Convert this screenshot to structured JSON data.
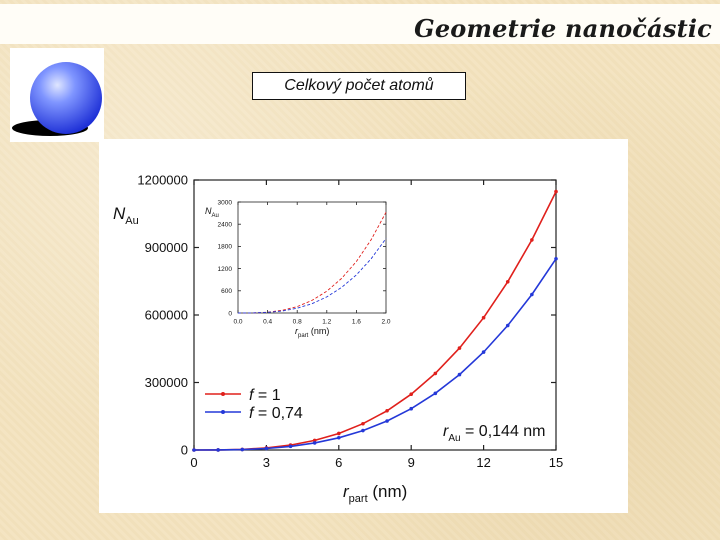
{
  "header": {
    "title": "Geometrie nanočástic",
    "subtitle": "Celkový počet atomů"
  },
  "icons": {
    "sphere": "sphere-icon"
  },
  "colors": {
    "red_series": "#e0201c",
    "blue_series": "#2438d8",
    "background": "#f3e3bf"
  },
  "chart_data": [
    {
      "type": "line",
      "role": "main",
      "ylabel_main": "N",
      "ylabel_sub": "Au",
      "xlabel_main": "r",
      "xlabel_sub": "part",
      "xlabel_unit": " (nm)",
      "xlim": [
        0,
        15
      ],
      "ylim": [
        0,
        1200000
      ],
      "xticks": [
        "0",
        "3",
        "6",
        "9",
        "12",
        "15"
      ],
      "yticks": [
        "0",
        "300000",
        "600000",
        "900000",
        "1200000"
      ],
      "xtick_values": [
        0,
        3,
        6,
        9,
        12,
        15
      ],
      "ytick_values": [
        0,
        300000,
        600000,
        900000,
        1200000
      ],
      "legend": {
        "placement": "bottom-left",
        "items": [
          "f = 1",
          "f = 0,74"
        ]
      },
      "annotation": {
        "main": "r",
        "sub": "Au",
        "rest": " = 0,144 nm"
      },
      "series": [
        {
          "name": "f = 1",
          "color": "#e0201c",
          "x": [
            0,
            1,
            2,
            3,
            4,
            5,
            6,
            7,
            8,
            9,
            10,
            11,
            12,
            13,
            14,
            15
          ],
          "y": [
            0,
            340,
            2700,
            9200,
            21800,
            42500,
            73500,
            116700,
            174200,
            248000,
            340300,
            452900,
            588000,
            747600,
            933700,
            1148400
          ]
        },
        {
          "name": "f = 0,74",
          "color": "#2438d8",
          "x": [
            0,
            1,
            2,
            3,
            4,
            5,
            6,
            7,
            8,
            9,
            10,
            11,
            12,
            13,
            14,
            15
          ],
          "y": [
            0,
            250,
            2000,
            6800,
            16100,
            31400,
            54400,
            86400,
            128900,
            183500,
            251800,
            335100,
            435100,
            553200,
            690900,
            849800
          ]
        }
      ]
    },
    {
      "type": "line",
      "role": "inset",
      "ylabel_main": "N",
      "ylabel_sub": "Au",
      "xlabel_main": "r",
      "xlabel_sub": "part",
      "xlabel_unit": " (nm)",
      "xlim": [
        0,
        2
      ],
      "ylim": [
        0,
        3000
      ],
      "xticks": [
        "0.0",
        "0.4",
        "0.8",
        "1.2",
        "1.6",
        "2.0"
      ],
      "yticks": [
        "0",
        "600",
        "1200",
        "1800",
        "2400",
        "3000"
      ],
      "xtick_values": [
        0,
        0.4,
        0.8,
        1.2,
        1.6,
        2.0
      ],
      "ytick_values": [
        0,
        600,
        1200,
        1800,
        2400,
        3000
      ],
      "series": [
        {
          "name": "f = 1",
          "color": "#e0201c",
          "x": [
            0,
            0.2,
            0.4,
            0.6,
            0.8,
            1.0,
            1.2,
            1.4,
            1.6,
            1.8,
            2.0
          ],
          "y": [
            0,
            3,
            22,
            73,
            174,
            340,
            588,
            934,
            1393,
            1984,
            2722
          ]
        },
        {
          "name": "f = 0,74",
          "color": "#2438d8",
          "x": [
            0,
            0.2,
            0.4,
            0.6,
            0.8,
            1.0,
            1.2,
            1.4,
            1.6,
            1.8,
            2.0
          ],
          "y": [
            0,
            2,
            16,
            54,
            129,
            252,
            435,
            691,
            1031,
            1468,
            2014
          ]
        }
      ]
    }
  ]
}
